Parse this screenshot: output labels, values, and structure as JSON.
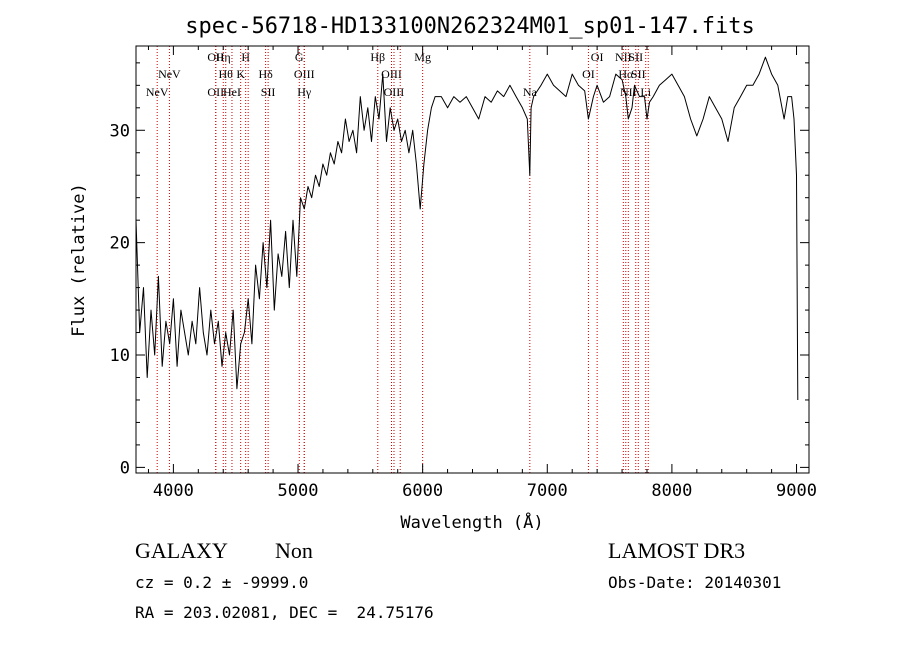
{
  "chart_data": {
    "type": "line",
    "title": "spec-56718-HD133100N262324M01_sp01-147.fits",
    "xlabel": "Wavelength (Å)",
    "ylabel": "Flux (relative)",
    "xlim": [
      3700,
      9100
    ],
    "ylim": [
      -0.5,
      37.5
    ],
    "xticks": [
      4000,
      5000,
      6000,
      7000,
      8000,
      9000
    ],
    "yticks": [
      0,
      10,
      20,
      30
    ],
    "grid": false,
    "line_color": "#000000",
    "marker_color": "#cc0000",
    "series": [
      {
        "x": [
          3700,
          3730,
          3760,
          3790,
          3820,
          3850,
          3880,
          3910,
          3940,
          3970,
          4000,
          4030,
          4060,
          4090,
          4120,
          4150,
          4180,
          4210,
          4240,
          4270,
          4300,
          4330,
          4360,
          4390,
          4420,
          4450,
          4480,
          4510,
          4540,
          4570,
          4600,
          4630,
          4660,
          4690,
          4720,
          4750,
          4780,
          4810,
          4840,
          4870,
          4900,
          4930,
          4960,
          4990,
          5020,
          5050,
          5080,
          5110,
          5140,
          5170,
          5200,
          5230,
          5260,
          5290,
          5320,
          5350,
          5380,
          5410,
          5440,
          5470,
          5500,
          5530,
          5560,
          5590,
          5620,
          5650,
          5680,
          5710,
          5740,
          5770,
          5800,
          5830,
          5860,
          5890,
          5920,
          5950,
          5980,
          6010,
          6040,
          6070,
          6100,
          6150,
          6200,
          6250,
          6300,
          6350,
          6400,
          6450,
          6500,
          6550,
          6600,
          6650,
          6700,
          6750,
          6800,
          6840,
          6860,
          6870,
          6890,
          6920,
          6950,
          7000,
          7050,
          7100,
          7150,
          7200,
          7250,
          7300,
          7330,
          7370,
          7400,
          7450,
          7500,
          7550,
          7600,
          7630,
          7650,
          7680,
          7700,
          7740,
          7780,
          7800,
          7820,
          7850,
          7900,
          7950,
          8000,
          8050,
          8100,
          8150,
          8200,
          8250,
          8300,
          8350,
          8400,
          8450,
          8500,
          8550,
          8600,
          8650,
          8700,
          8750,
          8800,
          8850,
          8900,
          8930,
          8960,
          8980,
          9000,
          9010
        ],
        "y": [
          22,
          12,
          16,
          8,
          14,
          10,
          17,
          9,
          13,
          11,
          15,
          9,
          14,
          12,
          10,
          13,
          11,
          16,
          12,
          10,
          14,
          11,
          13,
          9,
          12,
          10,
          14,
          7,
          11,
          12,
          15,
          11,
          18,
          15,
          20,
          16,
          22,
          14,
          19,
          17,
          21,
          16,
          22,
          17,
          24,
          23,
          25,
          24,
          26,
          25,
          27,
          26,
          28,
          27,
          29,
          28,
          31,
          29,
          30,
          28,
          33,
          30,
          32,
          29,
          33,
          31,
          35,
          29,
          32,
          30,
          31,
          29,
          30,
          28,
          30,
          27,
          23,
          27,
          30,
          32,
          33,
          33,
          32,
          33,
          32.5,
          33,
          32,
          31,
          33,
          32.5,
          33.5,
          33,
          34,
          33,
          32,
          31,
          26,
          32,
          33,
          33.5,
          34,
          35,
          34,
          33.5,
          33,
          35,
          34,
          33.5,
          31,
          33,
          34,
          32.5,
          33,
          35,
          34.5,
          33,
          31,
          32,
          34,
          33,
          33,
          31,
          32.5,
          33,
          34,
          34.5,
          35,
          34,
          33,
          31,
          29.5,
          31,
          33,
          32,
          31,
          29,
          32,
          33,
          34,
          34,
          35,
          36.5,
          35,
          34,
          31,
          33,
          33,
          31,
          26,
          6
        ]
      }
    ],
    "lines": [
      {
        "x": 3870,
        "label": "NeV",
        "row": 3
      },
      {
        "x": 3968,
        "label": "NeV",
        "row": 2
      },
      {
        "x": 4340,
        "label": "OII",
        "row": 1
      },
      {
        "x": 4340,
        "label": "OII",
        "row": 3
      },
      {
        "x": 4400,
        "label": "Hη",
        "row": 1
      },
      {
        "x": 4420,
        "label": "Hθ",
        "row": 2
      },
      {
        "x": 4470,
        "label": "HeI",
        "row": 3
      },
      {
        "x": 4540,
        "label": "K",
        "row": 2
      },
      {
        "x": 4580,
        "label": "H",
        "row": 1
      },
      {
        "x": 4600,
        "label": "",
        "row": 0
      },
      {
        "x": 4740,
        "label": "Hδ",
        "row": 2
      },
      {
        "x": 4760,
        "label": "SII",
        "row": 3
      },
      {
        "x": 5010,
        "label": "G",
        "row": 1
      },
      {
        "x": 5050,
        "label": "OIII",
        "row": 2
      },
      {
        "x": 5050,
        "label": "Hγ",
        "row": 3
      },
      {
        "x": 5640,
        "label": "Hβ",
        "row": 1
      },
      {
        "x": 5750,
        "label": "OIII",
        "row": 2
      },
      {
        "x": 5770,
        "label": "OIII",
        "row": 3
      },
      {
        "x": 5820,
        "label": "",
        "row": 0
      },
      {
        "x": 6000,
        "label": "Mg",
        "row": 1
      },
      {
        "x": 6860,
        "label": "Na",
        "row": 3
      },
      {
        "x": 7330,
        "label": "OI",
        "row": 2
      },
      {
        "x": 7400,
        "label": "OI",
        "row": 1
      },
      {
        "x": 7610,
        "label": "NII",
        "row": 1
      },
      {
        "x": 7630,
        "label": "Hα",
        "row": 2
      },
      {
        "x": 7650,
        "label": "NII",
        "row": 3
      },
      {
        "x": 7710,
        "label": "SII",
        "row": 1
      },
      {
        "x": 7730,
        "label": "SII",
        "row": 2
      },
      {
        "x": 7790,
        "label": "Li",
        "row": 3
      },
      {
        "x": 7810,
        "label": "",
        "row": 0
      }
    ]
  },
  "footer": {
    "object_class": "GALAXY",
    "subclass": "Non",
    "survey": "LAMOST DR3",
    "cz_line": "cz = 0.2 ± -9999.0",
    "obs_date": "Obs-Date: 20140301",
    "coords": "RA = 203.02081, DEC =  24.75176"
  }
}
